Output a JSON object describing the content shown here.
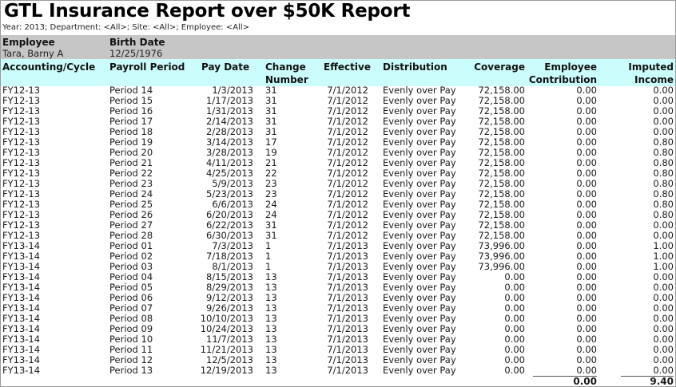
{
  "report": {
    "title": "GTL Insurance Report over $50K Report",
    "filters": "Year: 2013; Department: <All>; Site: <All>; Employee: <All>"
  },
  "employee": {
    "employee_label": "Employee",
    "birth_label": "Birth Date",
    "name": "Tara,  Barny A",
    "birth_date": "12/25/1976"
  },
  "columns": {
    "accounting": "Accounting/Cycle",
    "payroll_period": "Payroll Period",
    "pay_date": "Pay Date",
    "change_number_1": "Change",
    "change_number_2": "Number",
    "effective": "Effective",
    "distribution": "Distribution",
    "coverage": "Coverage",
    "employee_contribution_1": "Employee",
    "employee_contribution_2": "Contribution",
    "imputed_income_1": "Imputed",
    "imputed_income_2": "Income"
  },
  "rows": [
    [
      "FY12-13",
      "Period 14",
      "1/3/2013",
      "31",
      "7/1/2012",
      "Evenly over Pay",
      "72,158.00",
      "0.00",
      "0.00"
    ],
    [
      "FY12-13",
      "Period 15",
      "1/17/2013",
      "31",
      "7/1/2012",
      "Evenly over Pay",
      "72,158.00",
      "0.00",
      "0.00"
    ],
    [
      "FY12-13",
      "Period 16",
      "1/31/2013",
      "31",
      "7/1/2012",
      "Evenly over Pay",
      "72,158.00",
      "0.00",
      "0.00"
    ],
    [
      "FY12-13",
      "Period 17",
      "2/14/2013",
      "31",
      "7/1/2012",
      "Evenly over Pay",
      "72,158.00",
      "0.00",
      "0.00"
    ],
    [
      "FY12-13",
      "Period 18",
      "2/28/2013",
      "31",
      "7/1/2012",
      "Evenly over Pay",
      "72,158.00",
      "0.00",
      "0.00"
    ],
    [
      "FY12-13",
      "Period 19",
      "3/14/2013",
      "17",
      "7/1/2012",
      "Evenly over Pay",
      "72,158.00",
      "0.00",
      "0.80"
    ],
    [
      "FY12-13",
      "Period 20",
      "3/28/2013",
      "19",
      "7/1/2012",
      "Evenly over Pay",
      "72,158.00",
      "0.00",
      "0.80"
    ],
    [
      "FY12-13",
      "Period 21",
      "4/11/2013",
      "21",
      "7/1/2012",
      "Evenly over Pay",
      "72,158.00",
      "0.00",
      "0.80"
    ],
    [
      "FY12-13",
      "Period 22",
      "4/25/2013",
      "22",
      "7/1/2012",
      "Evenly over Pay",
      "72,158.00",
      "0.00",
      "0.80"
    ],
    [
      "FY12-13",
      "Period 23",
      "5/9/2013",
      "23",
      "7/1/2012",
      "Evenly over Pay",
      "72,158.00",
      "0.00",
      "0.80"
    ],
    [
      "FY12-13",
      "Period 24",
      "5/23/2013",
      "23",
      "7/1/2012",
      "Evenly over Pay",
      "72,158.00",
      "0.00",
      "0.80"
    ],
    [
      "FY12-13",
      "Period 25",
      "6/6/2013",
      "24",
      "7/1/2012",
      "Evenly over Pay",
      "72,158.00",
      "0.00",
      "0.80"
    ],
    [
      "FY12-13",
      "Period 26",
      "6/20/2013",
      "24",
      "7/1/2012",
      "Evenly over Pay",
      "72,158.00",
      "0.00",
      "0.80"
    ],
    [
      "FY12-13",
      "Period 27",
      "6/22/2013",
      "31",
      "7/1/2012",
      "Evenly over Pay",
      "72,158.00",
      "0.00",
      "0.00"
    ],
    [
      "FY12-13",
      "Period 28",
      "6/30/2013",
      "31",
      "7/1/2012",
      "Evenly over Pay",
      "72,158.00",
      "0.00",
      "0.00"
    ],
    [
      "FY13-14",
      "Period 01",
      "7/3/2013",
      "1",
      "7/1/2013",
      "Evenly over Pay",
      "73,996.00",
      "0.00",
      "1.00"
    ],
    [
      "FY13-14",
      "Period 02",
      "7/18/2013",
      "1",
      "7/1/2013",
      "Evenly over Pay",
      "73,996.00",
      "0.00",
      "1.00"
    ],
    [
      "FY13-14",
      "Period 03",
      "8/1/2013",
      "1",
      "7/1/2013",
      "Evenly over Pay",
      "73,996.00",
      "0.00",
      "1.00"
    ],
    [
      "FY13-14",
      "Period 04",
      "8/15/2013",
      "13",
      "7/1/2013",
      "Evenly over Pay",
      "0.00",
      "0.00",
      "0.00"
    ],
    [
      "FY13-14",
      "Period 05",
      "8/29/2013",
      "13",
      "7/1/2013",
      "Evenly over Pay",
      "0.00",
      "0.00",
      "0.00"
    ],
    [
      "FY13-14",
      "Period 06",
      "9/12/2013",
      "13",
      "7/1/2013",
      "Evenly over Pay",
      "0.00",
      "0.00",
      "0.00"
    ],
    [
      "FY13-14",
      "Period 07",
      "9/26/2013",
      "13",
      "7/1/2013",
      "Evenly over Pay",
      "0.00",
      "0.00",
      "0.00"
    ],
    [
      "FY13-14",
      "Period 08",
      "10/10/2013",
      "13",
      "7/1/2013",
      "Evenly over Pay",
      "0.00",
      "0.00",
      "0.00"
    ],
    [
      "FY13-14",
      "Period 09",
      "10/24/2013",
      "13",
      "7/1/2013",
      "Evenly over Pay",
      "0.00",
      "0.00",
      "0.00"
    ],
    [
      "FY13-14",
      "Period 10",
      "11/7/2013",
      "13",
      "7/1/2013",
      "Evenly over Pay",
      "0.00",
      "0.00",
      "0.00"
    ],
    [
      "FY13-14",
      "Period 11",
      "11/21/2013",
      "13",
      "7/1/2013",
      "Evenly over Pay",
      "0.00",
      "0.00",
      "0.00"
    ],
    [
      "FY13-14",
      "Period 12",
      "12/5/2013",
      "13",
      "7/1/2013",
      "Evenly over Pay",
      "0.00",
      "0.00",
      "0.00"
    ],
    [
      "FY13-14",
      "Period 13",
      "12/19/2013",
      "13",
      "7/1/2013",
      "Evenly over Pay",
      "0.00",
      "0.00",
      "0.00"
    ]
  ],
  "totals": {
    "employee_contribution": "0.00",
    "imputed_income": "9.40"
  }
}
